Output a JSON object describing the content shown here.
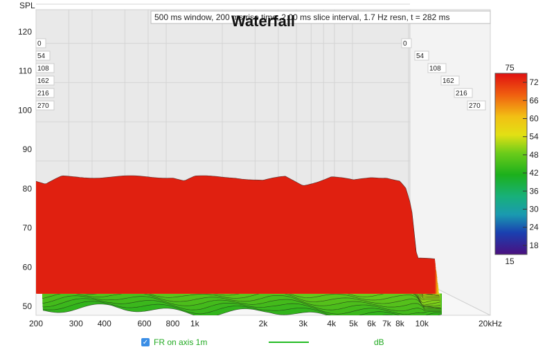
{
  "chart_data": {
    "type": "area",
    "title": "Waterfall",
    "subtitle": "500 ms window, 200 ms rise time, 2.00 ms slice interval, 1.7 Hz resn, t = 282 ms",
    "ylabel": "SPL",
    "xlabel": "",
    "x_unit": "kHz",
    "x_scale": "log",
    "xlim": [
      200,
      20000
    ],
    "ylim": [
      48,
      124
    ],
    "x_ticks": [
      "200",
      "300",
      "400",
      "600",
      "800",
      "1k",
      "2k",
      "3k",
      "4k",
      "5k",
      "6k",
      "7k",
      "8k",
      "10k",
      "20kHz"
    ],
    "y_ticks": [
      50,
      60,
      70,
      80,
      90,
      100,
      110,
      120
    ],
    "time_slices_ms": [
      "0",
      "54",
      "108",
      "162",
      "216",
      "270"
    ],
    "colorbar": {
      "unit": "dB",
      "min": 15,
      "max": 75,
      "ticks": [
        72,
        66,
        60,
        54,
        48,
        42,
        36,
        30,
        24,
        18
      ]
    },
    "front_slice": {
      "x": [
        200,
        220,
        260,
        300,
        350,
        400,
        450,
        500,
        600,
        700,
        800,
        900,
        1000,
        1200,
        1500,
        2000,
        2500,
        3000,
        3500,
        4000,
        5000,
        6000,
        7000,
        8000,
        8500,
        9000,
        9500
      ],
      "y": [
        82,
        81,
        83,
        83,
        83,
        83,
        83,
        83,
        83,
        83,
        83,
        82,
        83,
        83,
        83,
        82,
        83,
        81,
        82,
        83,
        82,
        83,
        83,
        82,
        80,
        75,
        62
      ]
    },
    "back_slice": {
      "x": [
        200,
        400,
        1000,
        2000,
        4000,
        8000,
        10000
      ],
      "y": [
        56,
        57,
        55,
        56,
        54,
        54,
        55
      ]
    },
    "series_color_ramp": [
      "#26b01c",
      "#7fcf1a",
      "#e8dc14",
      "#f08a10",
      "#e02010"
    ]
  },
  "legend": {
    "checkbox_label": "FR on axis 1m",
    "unit_label": "dB",
    "color": "#22aa22"
  }
}
